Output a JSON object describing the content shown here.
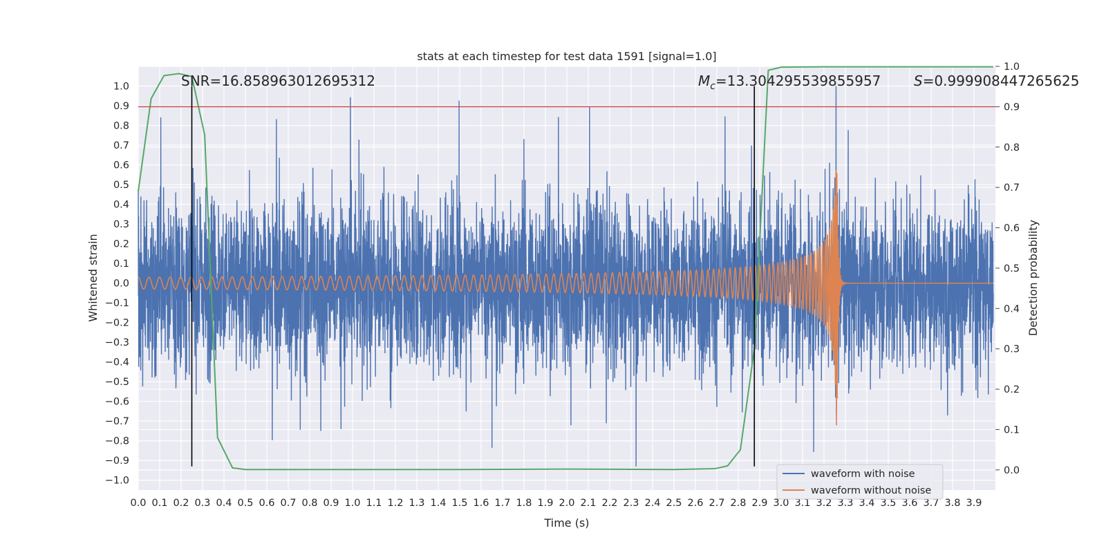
{
  "chart_data": {
    "type": "line",
    "title": "stats at each timestep for test data 1591 [signal=1.0]",
    "xlabel": "Time (s)",
    "ylabel": "Whitened strain",
    "y2label": "Detection probability",
    "xlim": [
      0.0,
      4.0
    ],
    "ylim": [
      -1.05,
      1.1
    ],
    "y2lim": [
      -0.05,
      1.0
    ],
    "x_ticks": [
      "0.0",
      "0.1",
      "0.2",
      "0.3",
      "0.4",
      "0.5",
      "0.6",
      "0.7",
      "0.8",
      "0.9",
      "1.0",
      "1.1",
      "1.2",
      "1.3",
      "1.4",
      "1.5",
      "1.6",
      "1.7",
      "1.8",
      "1.9",
      "2.0",
      "2.1",
      "2.2",
      "2.3",
      "2.4",
      "2.5",
      "2.6",
      "2.7",
      "2.8",
      "2.9",
      "3.0",
      "3.1",
      "3.2",
      "3.3",
      "3.4",
      "3.5",
      "3.6",
      "3.7",
      "3.8",
      "3.9"
    ],
    "y_ticks": [
      "1.0",
      "0.9",
      "0.8",
      "0.7",
      "0.6",
      "0.5",
      "0.4",
      "0.3",
      "0.2",
      "0.1",
      "0.0",
      "−0.1",
      "−0.2",
      "−0.3",
      "−0.4",
      "−0.5",
      "−0.6",
      "−0.7",
      "−0.8",
      "−0.9",
      "−1.0"
    ],
    "y2_ticks": [
      "1.0",
      "0.9",
      "0.8",
      "0.7",
      "0.6",
      "0.5",
      "0.4",
      "0.3",
      "0.2",
      "0.1",
      "0.0"
    ],
    "threshold_probability": 0.9,
    "vlines_s": [
      0.25,
      2.875
    ],
    "annotations": {
      "snr": "SNR=16.858963012695312",
      "mc_symbol": "M",
      "mc_sub": "c",
      "mc_value": "=13.304295539855957",
      "s_symbol": "S",
      "s_value": "=0.999908447265625"
    },
    "series": [
      {
        "name": "waveform with noise",
        "color": "#4c72b0",
        "description": "whitened noisy strain, amplitude mostly within ±0.5 with spikes to ~±0.9"
      },
      {
        "name": "waveform without noise",
        "color": "#dd8452",
        "chirp": {
          "start_s": 0.0,
          "merger_s": 3.26,
          "start_amplitude": 0.03,
          "peak_amplitude": 0.78,
          "start_freq_hz": 20
        }
      },
      {
        "name": "detection probability",
        "color": "#55a868",
        "axis": "y2",
        "x": [
          0.0,
          0.06,
          0.12,
          0.19,
          0.25,
          0.31,
          0.37,
          0.44,
          0.5,
          0.6,
          0.8,
          1.0,
          1.5,
          2.0,
          2.5,
          2.69,
          2.75,
          2.81,
          2.875,
          2.94,
          3.0,
          3.2,
          3.5,
          3.99
        ],
        "values": [
          0.69,
          0.92,
          0.977,
          0.982,
          0.975,
          0.83,
          0.08,
          0.005,
          0.001,
          0.001,
          0.001,
          0.001,
          0.001,
          0.002,
          0.001,
          0.003,
          0.01,
          0.05,
          0.3,
          0.99,
          0.998,
          0.999,
          0.999,
          0.999
        ]
      }
    ],
    "colors": {
      "axes_bg": "#eaeaf2",
      "grid": "#ffffff",
      "threshold": "#c44e52",
      "vline": "#000000"
    }
  }
}
